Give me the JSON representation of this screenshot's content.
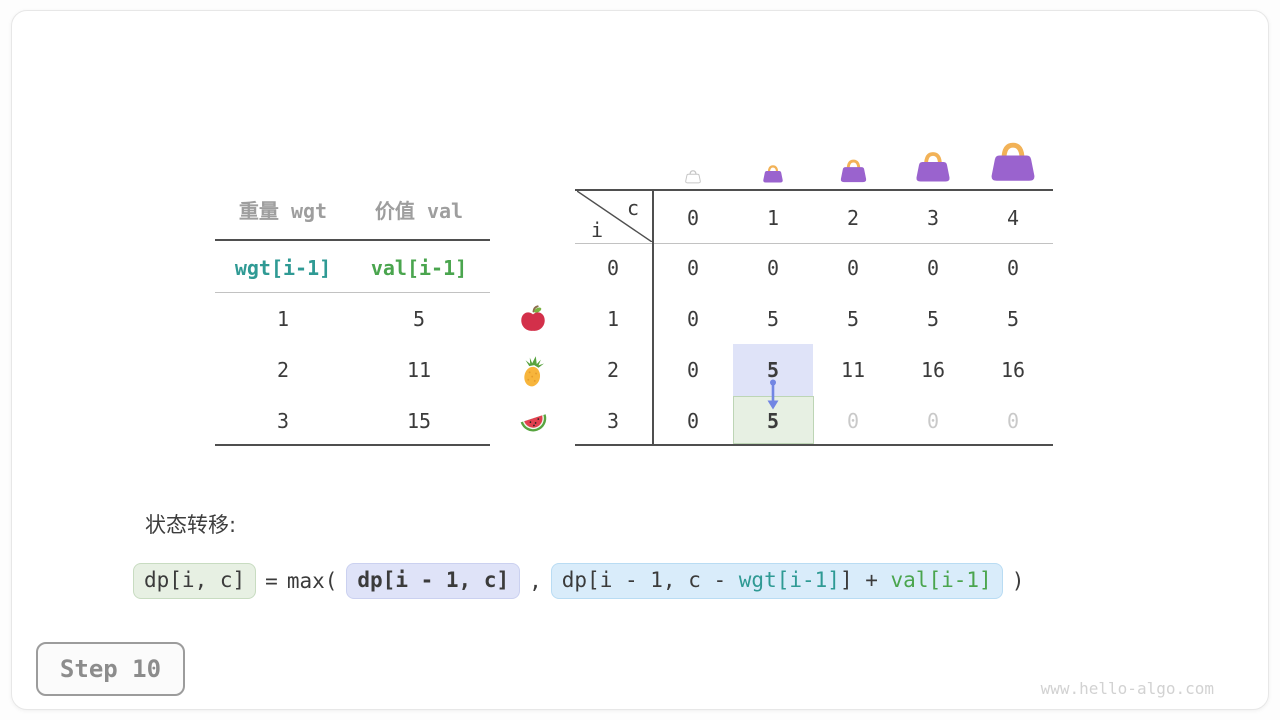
{
  "colors": {
    "text_dark": "#3b3b3b",
    "text_gray_header": "#9e9e9e",
    "text_dim": "#c9c9c9",
    "teal": "#2f9a94",
    "green": "#4aa54e",
    "lavender_fill": "#dfe3f8",
    "green_fill": "#e7f0e3",
    "green_border": "#bdd5b5",
    "blue_fill": "#d9ecfa",
    "arrow_blue": "#7286e3",
    "bag_purple": "#9a63ce",
    "bag_handle_orange": "#f2b257"
  },
  "items_table": {
    "col_headers": [
      "重量 wgt",
      "价值 val"
    ],
    "formula_row": [
      "wgt[i-1]",
      "val[i-1]"
    ],
    "rows": [
      {
        "wgt": "1",
        "val": "5",
        "fruit": "apple-icon"
      },
      {
        "wgt": "2",
        "val": "11",
        "fruit": "pineapple-icon"
      },
      {
        "wgt": "3",
        "val": "15",
        "fruit": "watermelon-icon"
      }
    ]
  },
  "dp_table": {
    "corner_col_var": "c",
    "corner_row_var": "i",
    "col_headers": [
      "0",
      "1",
      "2",
      "3",
      "4"
    ],
    "bags": [
      {
        "icon": "bag-ghost-icon",
        "size": 15
      },
      {
        "icon": "bag-icon",
        "size": 20
      },
      {
        "icon": "bag-icon",
        "size": 26
      },
      {
        "icon": "bag-icon",
        "size": 34
      },
      {
        "icon": "bag-icon",
        "size": 44
      }
    ],
    "rows": [
      {
        "label": "0",
        "cells": [
          {
            "v": "0"
          },
          {
            "v": "0"
          },
          {
            "v": "0"
          },
          {
            "v": "0"
          },
          {
            "v": "0"
          }
        ]
      },
      {
        "label": "1",
        "cells": [
          {
            "v": "0"
          },
          {
            "v": "5"
          },
          {
            "v": "5"
          },
          {
            "v": "5"
          },
          {
            "v": "5"
          }
        ]
      },
      {
        "label": "2",
        "cells": [
          {
            "v": "0"
          },
          {
            "v": "5",
            "state": "hl-prev",
            "bold": true
          },
          {
            "v": "11"
          },
          {
            "v": "16"
          },
          {
            "v": "16"
          }
        ]
      },
      {
        "label": "3",
        "cells": [
          {
            "v": "0"
          },
          {
            "v": "5",
            "state": "hl-cur",
            "bold": true
          },
          {
            "v": "0",
            "state": "dim"
          },
          {
            "v": "0",
            "state": "dim"
          },
          {
            "v": "0",
            "state": "dim"
          }
        ]
      }
    ]
  },
  "transition": {
    "label": "状态转移:",
    "lhs_chip": "dp[i, c]",
    "equals": "=",
    "max_open": "max(",
    "prev_chip": "dp[i - 1, c]",
    "comma": ",",
    "take_chip_segments": [
      {
        "text": "dp[i - 1, c - ",
        "role": "dark"
      },
      {
        "text": "wgt[i-1]",
        "role": "teal"
      },
      {
        "text": "]",
        "role": "dark"
      },
      {
        "text": " + ",
        "role": "dark"
      },
      {
        "text": "val[i-1]",
        "role": "green"
      }
    ],
    "close_paren": ")"
  },
  "footer": {
    "step_label": "Step 10",
    "watermark": "www.hello-algo.com"
  }
}
